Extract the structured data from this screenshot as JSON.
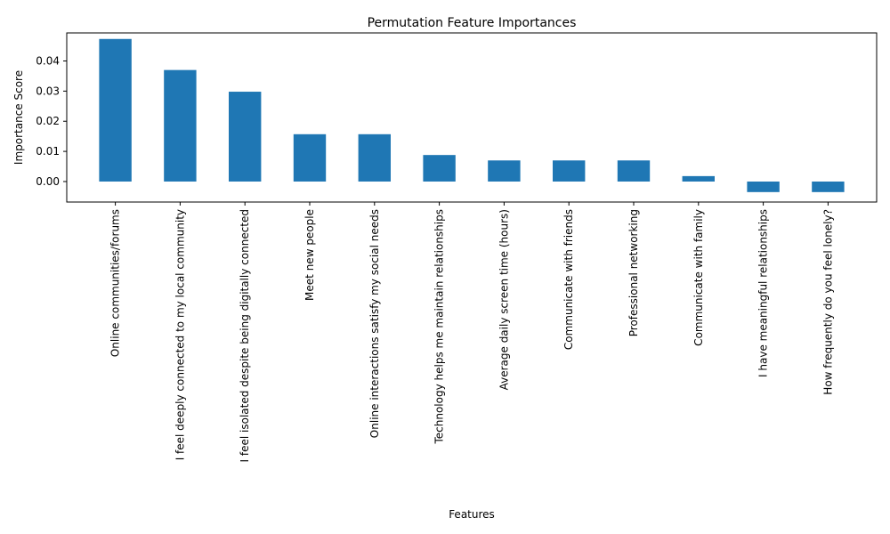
{
  "chart_data": {
    "type": "bar",
    "title": "Permutation Feature Importances",
    "xlabel": "Features",
    "ylabel": "Importance Score",
    "categories": [
      "Online communities/forums",
      "I feel deeply connected to my local community",
      "I feel isolated despite being digitally connected",
      "Meet new people",
      "Online interactions satisfy my social needs",
      "Technology helps me maintain relationships",
      "Average daily screen time (hours)",
      "Communicate with friends",
      "Professional networking",
      "Communicate with family",
      "I have meaningful relationships",
      "How frequently do you feel lonely?"
    ],
    "values": [
      0.0473,
      0.037,
      0.0298,
      0.0157,
      0.0157,
      0.0088,
      0.007,
      0.007,
      0.007,
      0.0018,
      -0.0035,
      -0.0035
    ],
    "ylim": [
      -0.0068,
      0.0493
    ],
    "yticks": [
      0.0,
      0.01,
      0.02,
      0.03,
      0.04
    ],
    "ytick_labels": [
      "0.00",
      "0.01",
      "0.02",
      "0.03",
      "0.04"
    ],
    "bar_color": "#1f77b4",
    "grid": false,
    "legend": "none"
  }
}
